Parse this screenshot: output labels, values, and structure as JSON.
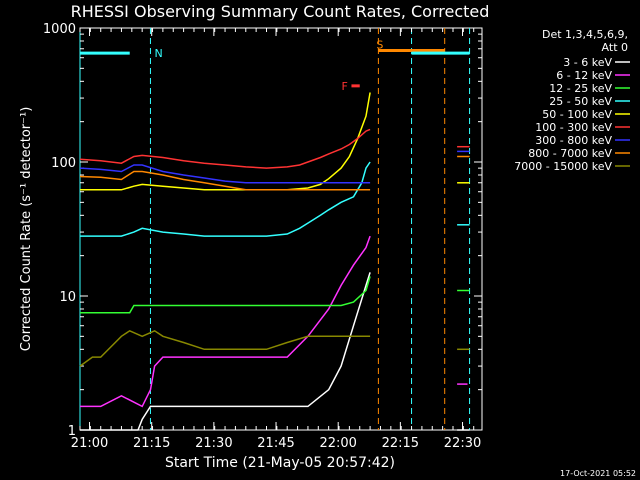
{
  "chart_data": {
    "type": "line",
    "title": "RHESSI Observing Summary Count Rates, Corrected",
    "xlabel": "Start Time (21-May-05 20:57:42)",
    "ylabel": "Corrected Count Rate (s⁻¹ detector⁻¹)",
    "y_scale": "log",
    "ylim": [
      1,
      1000
    ],
    "xlim_minutes_after_start": [
      0,
      97
    ],
    "x_tick_labels": [
      "21:00",
      "21:15",
      "21:30",
      "21:45",
      "22:00",
      "22:15",
      "22:30"
    ],
    "x_tick_minutes_after_start": [
      2.3,
      17.3,
      32.3,
      47.3,
      62.3,
      77.3,
      92.3
    ],
    "y_tick_labels": [
      "1",
      "10",
      "100",
      "1000"
    ],
    "y_tick_values": [
      1,
      10,
      100,
      1000
    ],
    "legend_header": [
      "Det 1,3,4,5,6,9,",
      "Att 0"
    ],
    "legend_position": "right",
    "footer_date": "17-Oct-2021 05:52",
    "series": [
      {
        "name": "3 - 6 keV",
        "color": "#ffffff",
        "x": [
          0,
          14,
          15,
          17,
          20,
          25,
          30,
          35,
          40,
          45,
          50,
          55,
          60,
          63,
          66,
          69,
          70
        ],
        "y": [
          0.8,
          0.8,
          1.2,
          1.5,
          1.5,
          1.5,
          1.5,
          1.5,
          1.5,
          1.5,
          1.5,
          1.5,
          2,
          3,
          6,
          12,
          15
        ],
        "x2": [
          91,
          94
        ],
        "y2": [
          1,
          1
        ]
      },
      {
        "name": "6 - 12 keV",
        "color": "#ff33ff",
        "x": [
          0,
          3,
          5,
          10,
          15,
          17,
          18,
          20,
          25,
          30,
          35,
          40,
          45,
          50,
          55,
          60,
          63,
          66,
          69,
          70
        ],
        "y": [
          1.5,
          1.5,
          1.5,
          1.8,
          1.5,
          2,
          3,
          3.5,
          3.5,
          3.5,
          3.5,
          3.5,
          3.5,
          3.5,
          5,
          8,
          12,
          17,
          23,
          28
        ],
        "x2": [
          91,
          93.5
        ],
        "y2": [
          2.2,
          2.2
        ]
      },
      {
        "name": "12 - 25 keV",
        "color": "#33ff33",
        "x": [
          0,
          5,
          10,
          12,
          13,
          15,
          20,
          25,
          30,
          35,
          40,
          45,
          50,
          55,
          60,
          63,
          66,
          69,
          70
        ],
        "y": [
          7.5,
          7.5,
          7.5,
          7.5,
          8.5,
          8.5,
          8.5,
          8.5,
          8.5,
          8.5,
          8.5,
          8.5,
          8.5,
          8.5,
          8.5,
          8.5,
          9,
          11,
          14
        ],
        "x2": [
          91,
          94
        ],
        "y2": [
          11,
          11
        ]
      },
      {
        "name": "25 - 50 keV",
        "color": "#33ffff",
        "x": [
          0,
          10,
          13,
          15,
          20,
          25,
          30,
          35,
          40,
          45,
          50,
          53,
          55,
          58,
          60,
          63,
          66,
          68,
          69,
          70
        ],
        "y": [
          28,
          28,
          30,
          32,
          30,
          29,
          28,
          28,
          28,
          28,
          29,
          32,
          35,
          40,
          44,
          50,
          55,
          70,
          90,
          100
        ],
        "x2": [
          91,
          94
        ],
        "y2": [
          34,
          34
        ]
      },
      {
        "name": "50 - 100 keV",
        "color": "#ffff00",
        "x": [
          0,
          10,
          13,
          15,
          20,
          25,
          30,
          35,
          40,
          45,
          50,
          55,
          58,
          60,
          63,
          65,
          67,
          69,
          70
        ],
        "y": [
          62,
          62,
          66,
          68,
          66,
          64,
          62,
          62,
          62,
          62,
          62,
          64,
          68,
          75,
          90,
          110,
          150,
          220,
          330
        ],
        "x2": [
          91,
          94
        ],
        "y2": [
          70,
          70
        ]
      },
      {
        "name": "100 - 300 keV",
        "color": "#ff3333",
        "x": [
          0,
          5,
          10,
          13,
          15,
          20,
          25,
          30,
          35,
          40,
          45,
          50,
          53,
          55,
          58,
          60,
          63,
          65,
          67,
          69,
          70
        ],
        "y": [
          105,
          102,
          98,
          110,
          112,
          108,
          102,
          98,
          95,
          92,
          90,
          92,
          95,
          100,
          108,
          115,
          125,
          135,
          150,
          170,
          175
        ],
        "x2": [
          91,
          94
        ],
        "y2": [
          130,
          130
        ]
      },
      {
        "name": "300 - 800 keV",
        "color": "#3333ff",
        "x": [
          0,
          5,
          10,
          13,
          15,
          20,
          25,
          30,
          35,
          40,
          45,
          50,
          55,
          60,
          65,
          68,
          70
        ],
        "y": [
          90,
          88,
          85,
          95,
          95,
          85,
          80,
          76,
          72,
          70,
          70,
          70,
          70,
          70,
          70,
          70,
          70
        ],
        "x2": [
          91,
          94
        ],
        "y2": [
          120,
          120
        ]
      },
      {
        "name": "800 - 7000 keV",
        "color": "#ff8800",
        "x": [
          0,
          5,
          10,
          13,
          15,
          20,
          25,
          30,
          35,
          40,
          45,
          50,
          55,
          60,
          65,
          68,
          70
        ],
        "y": [
          78,
          77,
          74,
          85,
          85,
          80,
          74,
          70,
          66,
          62,
          62,
          62,
          62,
          62,
          62,
          62,
          62
        ],
        "x2": [
          91,
          94
        ],
        "y2": [
          110,
          110
        ]
      },
      {
        "name": "7000 - 15000 keV",
        "color": "#888800",
        "x": [
          0,
          3,
          5,
          10,
          12,
          15,
          18,
          20,
          25,
          30,
          35,
          40,
          45,
          50,
          55,
          60,
          65,
          70
        ],
        "y": [
          3,
          3.5,
          3.5,
          5,
          5.5,
          5,
          5.5,
          5,
          4.5,
          4,
          4,
          4,
          4,
          4.5,
          5,
          5,
          5,
          5
        ],
        "x2": [
          91,
          94
        ],
        "y2": [
          4,
          4
        ]
      }
    ],
    "annotations": [
      {
        "label": "N",
        "color": "#33ffff",
        "x_minutes": [
          0,
          12
        ],
        "y": 650,
        "band": [
          0,
          17
        ]
      },
      {
        "label": "F",
        "color": "#ff3333",
        "x_minutes": [
          65.5,
          67.5
        ],
        "y": 370
      },
      {
        "label": "S",
        "color": "#ff8800",
        "x_minutes": [
          72,
          88
        ],
        "y": 680,
        "band": [
          72,
          88
        ]
      },
      {
        "label": "",
        "color": "#33ffff",
        "x_minutes": [
          80,
          94
        ],
        "y": 650,
        "band": [
          80,
          94
        ]
      }
    ]
  }
}
